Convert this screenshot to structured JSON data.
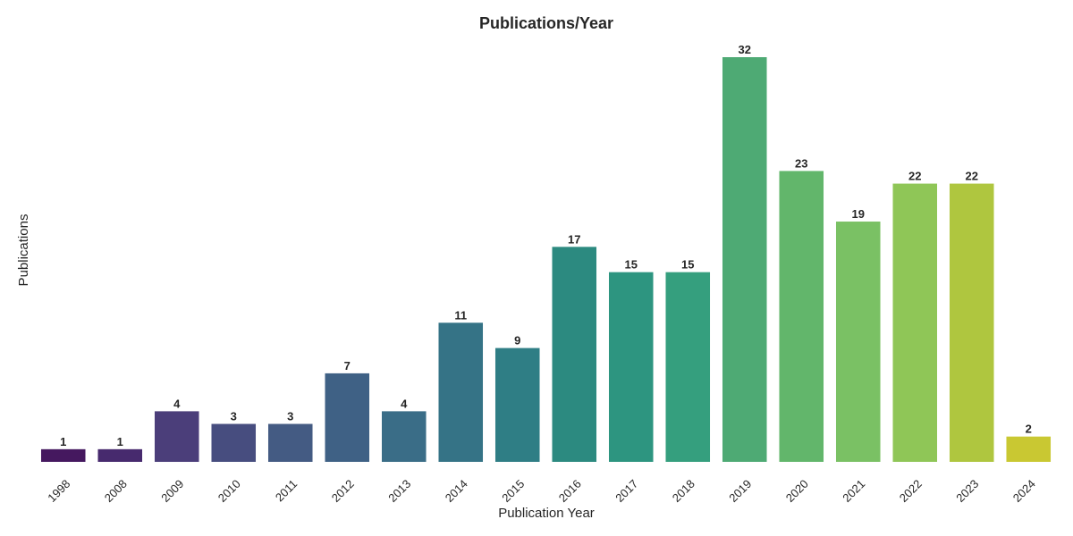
{
  "chart_data": {
    "type": "bar",
    "title": "Publications/Year",
    "xlabel": "Publication Year",
    "ylabel": "Publications",
    "categories": [
      "1998",
      "2008",
      "2009",
      "2010",
      "2011",
      "2012",
      "2013",
      "2014",
      "2015",
      "2016",
      "2017",
      "2018",
      "2019",
      "2020",
      "2021",
      "2022",
      "2023",
      "2024"
    ],
    "values": [
      1,
      1,
      4,
      3,
      3,
      7,
      4,
      11,
      9,
      17,
      15,
      15,
      32,
      23,
      19,
      22,
      22,
      2
    ],
    "ylim": [
      0,
      32
    ],
    "grid": false,
    "legend": "none",
    "colors": [
      "#45185f",
      "#472a6e",
      "#4b3e7a",
      "#474d7f",
      "#445b83",
      "#3f6185",
      "#3a6d87",
      "#357386",
      "#2f7e85",
      "#2c8a80",
      "#2d9580",
      "#359f7e",
      "#4eaa74",
      "#62b66b",
      "#7ac164",
      "#8fc657",
      "#afc63f",
      "#c9c832"
    ]
  }
}
